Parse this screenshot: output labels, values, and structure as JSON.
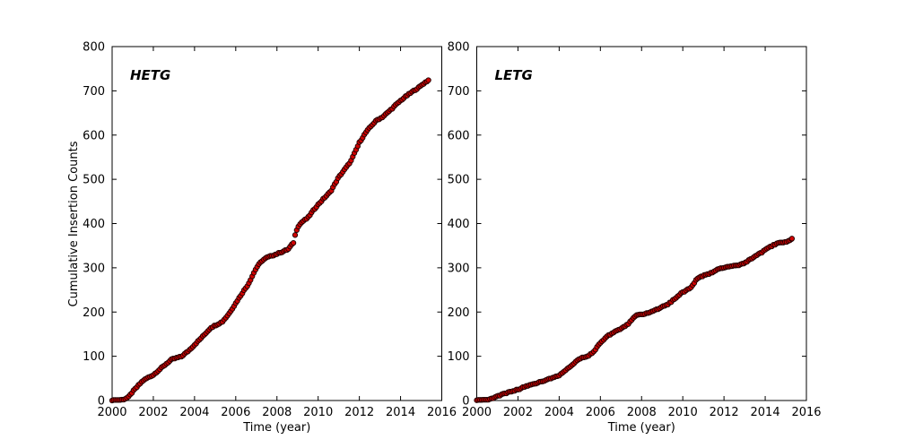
{
  "figure": {
    "background": "#ffffff",
    "frame_color": "#000000",
    "marker_fill": "#cf0202",
    "marker_edge": "#1c0000"
  },
  "chart_data": [
    {
      "type": "scatter",
      "panel": "left",
      "title": "HETG",
      "xlabel": "Time (year)",
      "ylabel": "Cumulative Insertion Counts",
      "xlim": [
        2000,
        2016
      ],
      "ylim": [
        0,
        800
      ],
      "xticks": [
        2000,
        2002,
        2004,
        2006,
        2008,
        2010,
        2012,
        2014,
        2016
      ],
      "yticks": [
        0,
        100,
        200,
        300,
        400,
        500,
        600,
        700,
        800
      ],
      "grid": false,
      "legend": "none",
      "points": {
        "x": [
          2000.0,
          2000.55,
          2000.8,
          2001.0,
          2001.25,
          2001.5,
          2001.75,
          2002.0,
          2002.3,
          2002.6,
          2002.9,
          2003.1,
          2003.35,
          2003.7,
          2004.0,
          2004.4,
          2004.8,
          2005.1,
          2005.35,
          2005.65,
          2006.0,
          2006.3,
          2006.6,
          2007.0,
          2007.25,
          2007.5,
          2007.8,
          2008.2,
          2008.55,
          2008.8,
          2008.9,
          2009.0,
          2009.2,
          2009.5,
          2009.8,
          2010.0,
          2010.3,
          2010.6,
          2011.0,
          2011.3,
          2011.6,
          2012.0,
          2012.3,
          2012.6,
          2012.85,
          2013.1,
          2013.4,
          2013.7,
          2014.0,
          2014.3,
          2014.6,
          2014.9,
          2015.1,
          2015.35
        ],
        "y": [
          0,
          2,
          8,
          20,
          33,
          45,
          52,
          58,
          70,
          82,
          93,
          96,
          99,
          112,
          126,
          145,
          165,
          172,
          178,
          195,
          220,
          242,
          262,
          300,
          315,
          323,
          328,
          335,
          342,
          357,
          378,
          392,
          403,
          413,
          432,
          443,
          458,
          472,
          505,
          523,
          542,
          583,
          605,
          622,
          634,
          640,
          652,
          665,
          678,
          689,
          699,
          708,
          716,
          724
        ]
      }
    },
    {
      "type": "scatter",
      "panel": "right",
      "title": "LETG",
      "xlabel": "Time (year)",
      "ylabel": "",
      "xlim": [
        2000,
        2016
      ],
      "ylim": [
        0,
        800
      ],
      "xticks": [
        2000,
        2002,
        2004,
        2006,
        2008,
        2010,
        2012,
        2014,
        2016
      ],
      "yticks": [
        0,
        100,
        200,
        300,
        400,
        500,
        600,
        700,
        800
      ],
      "grid": false,
      "legend": "none",
      "points": {
        "x": [
          2000.0,
          2000.6,
          2000.9,
          2001.2,
          2001.6,
          2002.0,
          2002.4,
          2002.8,
          2003.1,
          2003.4,
          2003.7,
          2004.0,
          2004.4,
          2004.8,
          2005.1,
          2005.45,
          2005.7,
          2006.0,
          2006.3,
          2006.6,
          2007.0,
          2007.3,
          2007.5,
          2007.7,
          2008.0,
          2008.3,
          2008.6,
          2009.0,
          2009.3,
          2009.6,
          2009.85,
          2010.1,
          2010.4,
          2010.7,
          2011.0,
          2011.3,
          2011.6,
          2011.9,
          2012.3,
          2012.7,
          2013.0,
          2013.3,
          2013.6,
          2014.0,
          2014.3,
          2014.6,
          2014.9,
          2015.1,
          2015.3
        ],
        "y": [
          0,
          2,
          7,
          13,
          19,
          25,
          32,
          38,
          43,
          47,
          51,
          57,
          72,
          88,
          97,
          101,
          112,
          131,
          144,
          153,
          163,
          171,
          181,
          192,
          195,
          197,
          203,
          212,
          218,
          230,
          240,
          247,
          256,
          276,
          282,
          286,
          294,
          300,
          303,
          306,
          311,
          320,
          328,
          340,
          349,
          355,
          357,
          360,
          366
        ]
      }
    }
  ]
}
